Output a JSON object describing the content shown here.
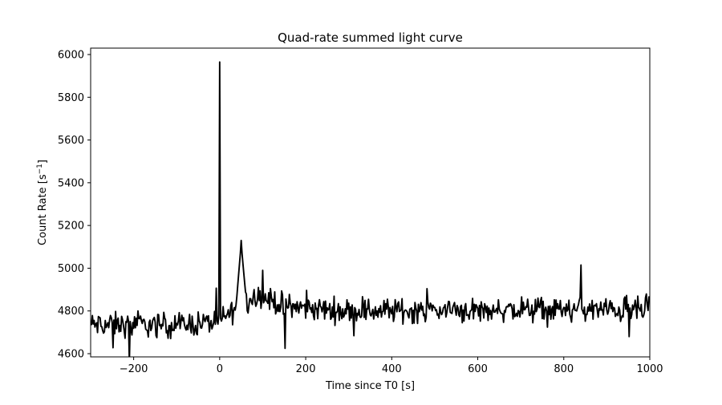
{
  "chart_data": {
    "type": "line",
    "title": "Quad-rate summed light curve",
    "xlabel": "Time since T0 [s]",
    "ylabel_main": "Count Rate [s",
    "ylabel_sup": "−1",
    "ylabel_end": "]",
    "xlim": [
      -300,
      1000
    ],
    "ylim": [
      4585,
      6030
    ],
    "xticks": [
      -200,
      0,
      200,
      400,
      600,
      800,
      1000
    ],
    "xtick_labels": [
      "−200",
      "0",
      "200",
      "400",
      "600",
      "800",
      "1000"
    ],
    "yticks": [
      4600,
      4800,
      5000,
      5200,
      5400,
      5600,
      5800,
      6000
    ],
    "ytick_labels": [
      "4600",
      "4800",
      "5000",
      "5200",
      "5400",
      "5600",
      "5800",
      "6000"
    ],
    "grid": false,
    "line_color": "#000000",
    "bin_seconds": 2,
    "series": [
      {
        "peaks": [
          {
            "t": 0,
            "rate": 5965
          },
          {
            "t": 50,
            "rate": 5130
          },
          {
            "t": -57,
            "rate": 4950
          },
          {
            "t": 100,
            "rate": 4990
          },
          {
            "t": 840,
            "rate": 5015
          }
        ],
        "dips": [
          {
            "t": -210,
            "rate": 4560
          },
          {
            "t": -165,
            "rate": 4600
          },
          {
            "t": -248,
            "rate": 4628
          },
          {
            "t": 152,
            "rate": 4625
          },
          {
            "t": 952,
            "rate": 4680
          }
        ],
        "baseline": [
          {
            "t": -300,
            "rate": 4735
          },
          {
            "t": -100,
            "rate": 4735
          },
          {
            "t": 0,
            "rate": 4750
          },
          {
            "t": 40,
            "rate": 4820
          },
          {
            "t": 90,
            "rate": 4880
          },
          {
            "t": 150,
            "rate": 4820
          },
          {
            "t": 300,
            "rate": 4800
          },
          {
            "t": 600,
            "rate": 4805
          },
          {
            "t": 1000,
            "rate": 4805
          }
        ],
        "noise_amplitude": 35
      }
    ]
  }
}
